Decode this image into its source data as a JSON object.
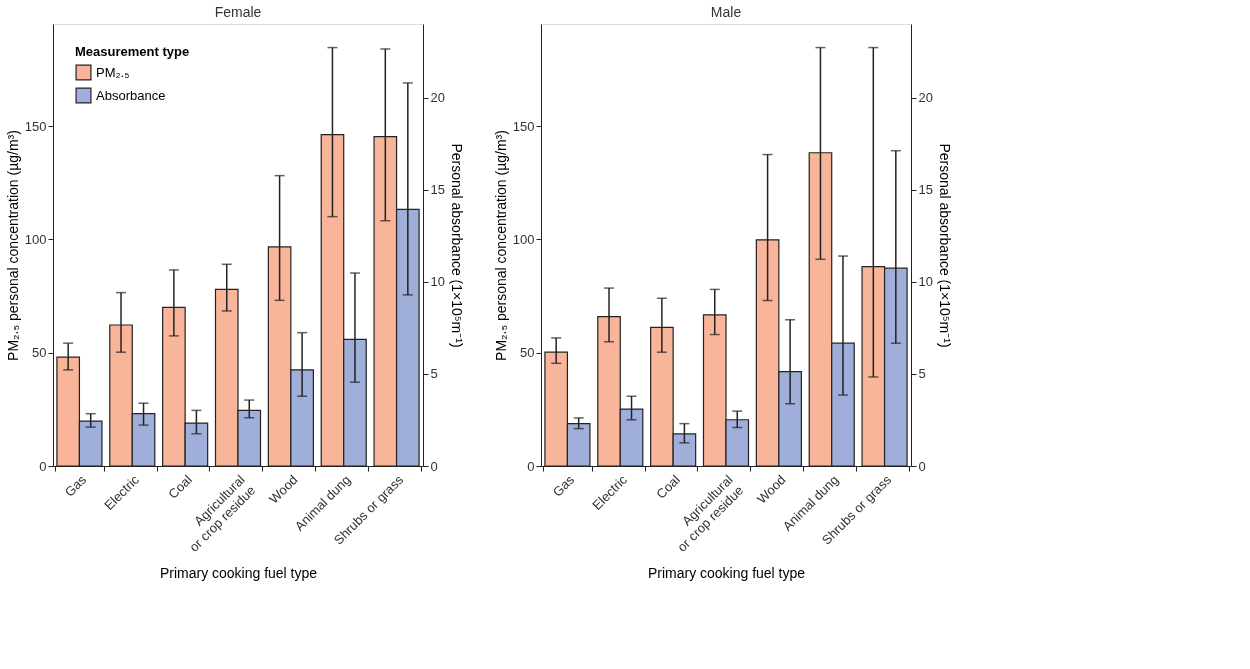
{
  "chart_data": [
    {
      "type": "bar",
      "title": "Female",
      "xlabel": "Primary cooking fuel type",
      "ylabel": "PM₂.₅ personal concentration (µg/m³)",
      "y2label": "Personal absorbance (1×10⁵m⁻¹)",
      "legend_title": "Measurement type",
      "legend": "top left",
      "categories": [
        "Gas",
        "Electric",
        "Coal",
        "Agricultural or crop residue",
        "Wood",
        "Animal dung",
        "Shrubs or grass"
      ],
      "ylim": [
        0,
        195
      ],
      "yticks": [
        0,
        50,
        100,
        150
      ],
      "y2lim": [
        0,
        24
      ],
      "y2ticks": [
        0,
        5,
        10,
        15,
        20
      ],
      "series": [
        {
          "name": "PM₂.₅",
          "color": "#f9b59a",
          "axis": "y",
          "values": [
            48,
            62.2,
            70,
            77.9,
            96.7,
            146.2,
            145.3
          ],
          "errors": [
            [
              42.4,
              54.2
            ],
            [
              50.2,
              76.5
            ],
            [
              57.4,
              86.5
            ],
            [
              68.4,
              89
            ],
            [
              73.1,
              128.1
            ],
            [
              110,
              184.6
            ],
            [
              108.2,
              184
            ]
          ]
        },
        {
          "name": "Absorbance",
          "color": "#9fafd9",
          "axis": "y2",
          "values": [
            2.44,
            2.84,
            2.33,
            3.02,
            5.22,
            6.88,
            13.93
          ],
          "errors": [
            [
              2.11,
              2.84
            ],
            [
              2.22,
              3.41
            ],
            [
              1.75,
              3.02
            ],
            [
              2.62,
              3.58
            ],
            [
              3.79,
              7.24
            ],
            [
              4.55,
              10.48
            ],
            [
              9.29,
              20.8
            ]
          ]
        }
      ]
    },
    {
      "type": "bar",
      "title": "Male",
      "xlabel": "Primary cooking fuel type",
      "ylabel": "PM₂.₅ personal concentration (µg/m³)",
      "y2label": "Personal absorbance (1×10⁵m⁻¹)",
      "categories": [
        "Gas",
        "Electric",
        "Coal",
        "Agricultural or crop residue",
        "Wood",
        "Animal dung",
        "Shrubs or grass"
      ],
      "ylim": [
        0,
        195
      ],
      "yticks": [
        0,
        50,
        100,
        150
      ],
      "y2lim": [
        0,
        24
      ],
      "y2ticks": [
        0,
        5,
        10,
        15,
        20
      ],
      "series": [
        {
          "color": "#f9b59a",
          "axis": "y",
          "values": [
            50.2,
            65.9,
            61.2,
            66.7,
            99.8,
            138.2,
            88
          ],
          "errors": [
            [
              45.3,
              56.5
            ],
            [
              54.8,
              78.5
            ],
            [
              50.2,
              74
            ],
            [
              58,
              77.9
            ],
            [
              73,
              137.4
            ],
            [
              91.2,
              184.6
            ],
            [
              39.3,
              184.6
            ]
          ]
        },
        {
          "color": "#9fafd9",
          "axis": "y2",
          "values": [
            2.3,
            3.09,
            1.74,
            2.51,
            5.12,
            6.67,
            10.74
          ],
          "errors": [
            [
              2.03,
              2.61
            ],
            [
              2.51,
              3.79
            ],
            [
              1.26,
              2.3
            ],
            [
              2.09,
              2.98
            ],
            [
              3.38,
              7.94
            ],
            [
              3.85,
              11.4
            ],
            [
              6.67,
              17.12
            ]
          ]
        }
      ]
    }
  ]
}
